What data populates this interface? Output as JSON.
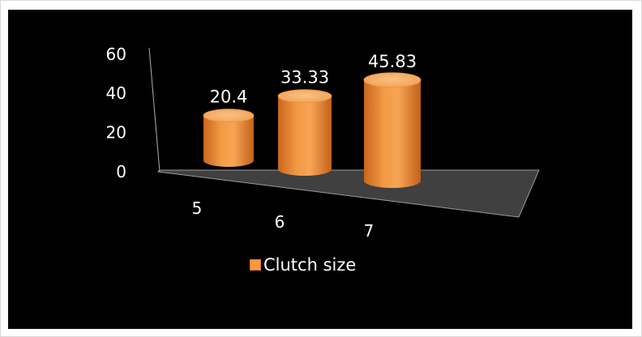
{
  "chart_data": {
    "type": "bar",
    "style": "3d-cylinder",
    "title": "",
    "xlabel": "",
    "ylabel": "",
    "categories": [
      "5",
      "6",
      "7"
    ],
    "series": [
      {
        "name": "Clutch size",
        "values": [
          20.4,
          33.33,
          45.83
        ]
      }
    ],
    "data_labels": [
      "20.4",
      "33.33",
      "45.83"
    ],
    "y_ticks": [
      "0",
      "20",
      "40",
      "60"
    ],
    "ylim": [
      0,
      60
    ],
    "grid": false,
    "legend_position": "bottom",
    "colors": {
      "background": "#000000",
      "floor": "#404040",
      "bar_side": "#f0902f",
      "bar_top": "#f6b066",
      "text": "#ffffff"
    }
  }
}
